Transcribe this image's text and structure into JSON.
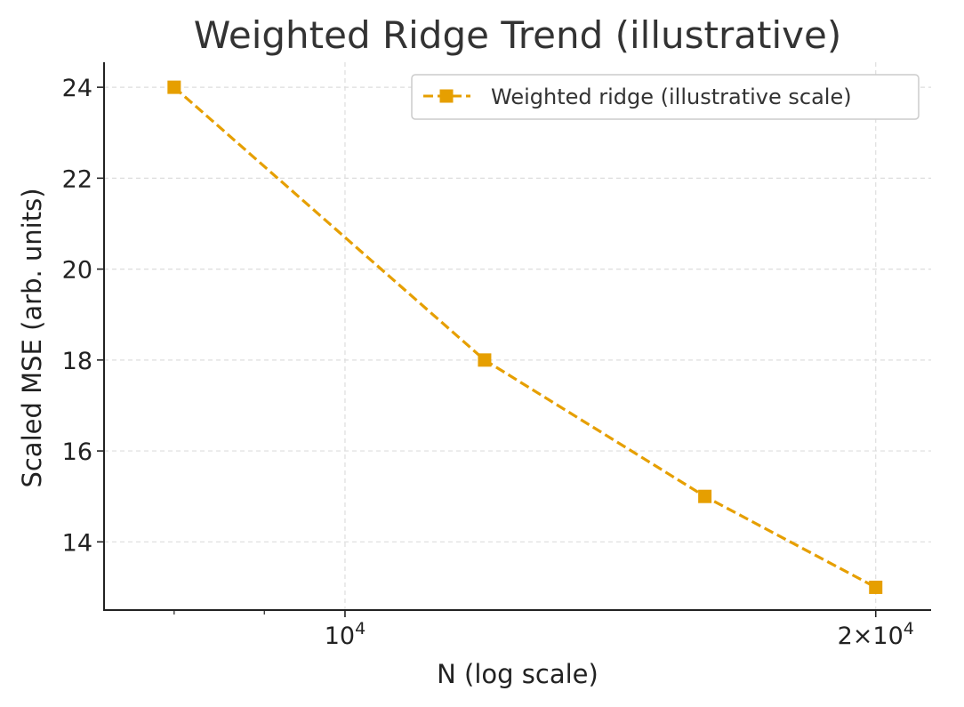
{
  "chart_data": {
    "type": "line",
    "title": "Weighted Ridge Trend (illustrative)",
    "xlabel": "N (log scale)",
    "ylabel": "Scaled MSE (arb. units)",
    "x_scale": "log",
    "xlim": [
      7300,
      21500
    ],
    "ylim": [
      12.5,
      24.55
    ],
    "x_major_ticks": [
      {
        "value": 10000,
        "base": "10",
        "exp": "4",
        "prefix": ""
      },
      {
        "value": 20000,
        "base": "10",
        "exp": "4",
        "prefix": "2×"
      }
    ],
    "x_minor_ticks": [
      8000,
      9000
    ],
    "y_ticks": [
      14,
      16,
      18,
      20,
      22,
      24
    ],
    "grid": true,
    "legend": {
      "location": "upper right"
    },
    "series": [
      {
        "name": "Weighted ridge (illustrative scale)",
        "color": "#E69F00",
        "line_style": "dashed",
        "marker": "square",
        "x": [
          8000,
          12000,
          16000,
          20000
        ],
        "y": [
          24,
          18,
          15,
          13
        ]
      }
    ]
  }
}
